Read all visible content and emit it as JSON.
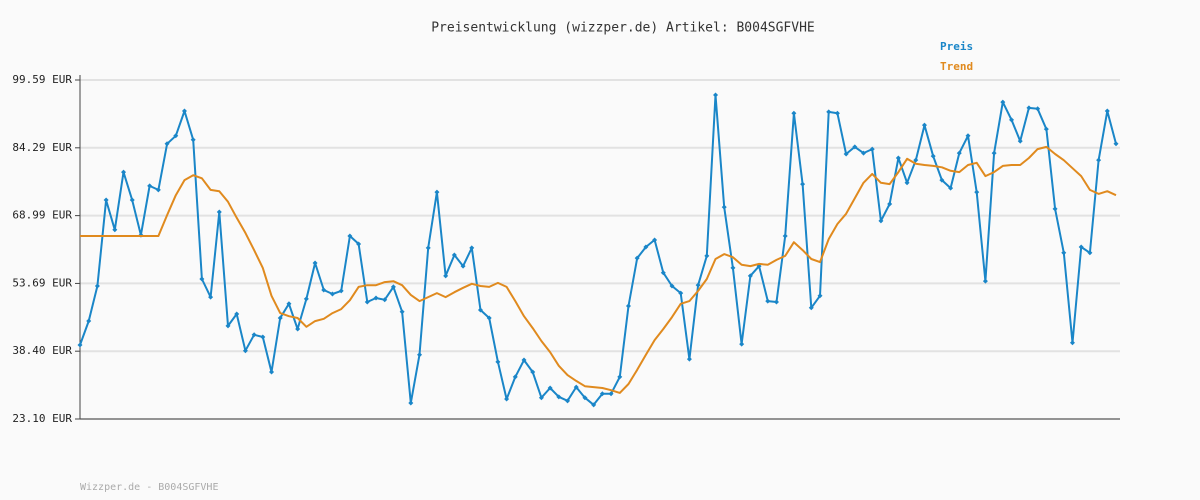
{
  "chart_data": {
    "type": "line",
    "title": "Preisentwicklung (wizzper.de) Artikel: B004SGFVHE",
    "footer": "Wizzper.de - B004SGFVHE",
    "ylim": [
      23.1,
      99.59
    ],
    "yticks": [
      {
        "value": 23.1,
        "label": "23.10 EUR"
      },
      {
        "value": 38.4,
        "label": "38.40 EUR"
      },
      {
        "value": 53.69,
        "label": "53.69 EUR"
      },
      {
        "value": 68.99,
        "label": "68.99 EUR"
      },
      {
        "value": 84.29,
        "label": "84.29 EUR"
      },
      {
        "value": 99.59,
        "label": "99.59 EUR"
      }
    ],
    "grid": true,
    "legend": "top-right",
    "series": [
      {
        "name": "Preis",
        "color": "#1a86c8",
        "markers": true,
        "values": [
          39.8,
          45.2,
          53.1,
          72.5,
          65.8,
          78.8,
          72.5,
          64.6,
          75.7,
          74.8,
          85.2,
          87.0,
          92.6,
          86.1,
          54.7,
          50.6,
          69.8,
          44.1,
          46.8,
          38.5,
          42.1,
          41.6,
          33.7,
          45.9,
          49.1,
          43.4,
          50.2,
          58.3,
          52.2,
          51.3,
          52.0,
          64.4,
          62.6,
          49.5,
          50.4,
          50.0,
          52.9,
          47.3,
          26.7,
          37.6,
          61.7,
          74.3,
          55.4,
          60.1,
          57.6,
          61.7,
          47.7,
          45.9,
          36.0,
          27.6,
          32.6,
          36.4,
          33.7,
          27.9,
          30.1,
          28.1,
          27.2,
          30.3,
          27.9,
          26.3,
          28.8,
          28.8,
          32.6,
          48.6,
          59.4,
          61.9,
          63.5,
          56.1,
          53.1,
          51.5,
          36.6,
          53.3,
          59.9,
          96.2,
          70.9,
          57.2,
          40.0,
          55.4,
          57.6,
          49.7,
          49.5,
          64.4,
          92.1,
          76.1,
          48.2,
          50.9,
          92.4,
          92.1,
          82.9,
          84.5,
          83.1,
          84.0,
          67.8,
          71.6,
          82.0,
          76.4,
          81.5,
          89.4,
          82.4,
          77.0,
          75.2,
          83.1,
          87.0,
          74.3,
          54.2,
          83.1,
          94.6,
          90.6,
          85.8,
          93.3,
          93.1,
          88.5,
          70.5,
          60.6,
          40.3,
          61.9,
          60.6,
          81.5,
          92.6,
          85.2
        ]
      },
      {
        "name": "Trend",
        "color": "#e08a1e",
        "markers": false,
        "values": [
          64.4,
          64.4,
          64.4,
          64.4,
          64.4,
          64.4,
          64.4,
          64.4,
          64.4,
          64.4,
          69.1,
          73.6,
          77.0,
          78.1,
          77.4,
          74.8,
          74.5,
          72.1,
          68.5,
          65.1,
          61.2,
          57.2,
          50.9,
          47.0,
          46.3,
          45.9,
          43.9,
          45.2,
          45.7,
          47.0,
          47.9,
          49.9,
          52.9,
          53.3,
          53.3,
          54.0,
          54.2,
          53.3,
          51.1,
          49.7,
          50.6,
          51.5,
          50.6,
          51.7,
          52.7,
          53.6,
          53.1,
          52.9,
          53.8,
          52.9,
          49.7,
          46.3,
          43.6,
          40.7,
          38.2,
          35.1,
          33.0,
          31.7,
          30.5,
          30.3,
          30.1,
          29.6,
          29.0,
          31.0,
          34.2,
          37.6,
          40.9,
          43.4,
          46.1,
          49.1,
          49.7,
          52.0,
          54.7,
          59.2,
          60.3,
          59.6,
          57.9,
          57.6,
          58.1,
          57.9,
          59.0,
          59.9,
          63.0,
          61.2,
          59.2,
          58.5,
          63.7,
          67.1,
          69.4,
          72.9,
          76.4,
          78.4,
          76.4,
          76.1,
          78.8,
          81.8,
          80.7,
          80.4,
          80.2,
          79.9,
          79.1,
          78.8,
          80.4,
          80.9,
          77.9,
          78.8,
          80.2,
          80.4,
          80.4,
          82.0,
          84.0,
          84.5,
          82.9,
          81.5,
          79.7,
          77.9,
          74.8,
          73.9,
          74.5,
          73.6
        ]
      }
    ]
  }
}
